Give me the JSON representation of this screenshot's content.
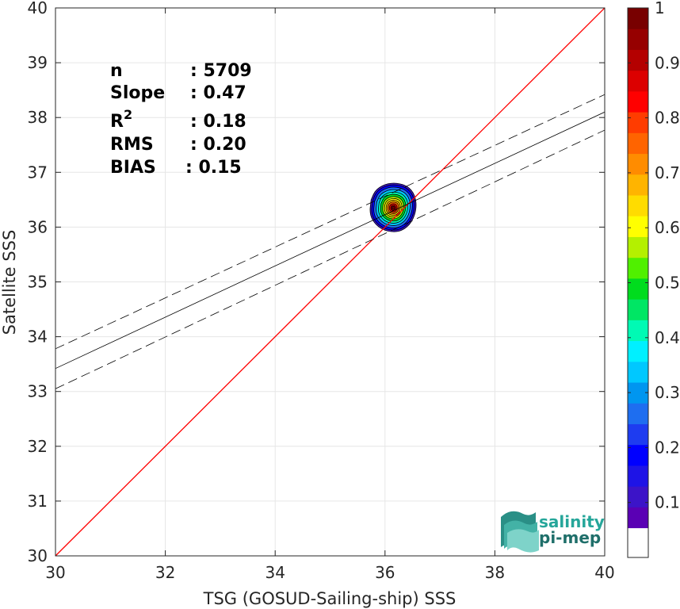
{
  "chart_data": {
    "type": "contour-scatter",
    "xlabel": "TSG (GOSUD-Sailing-ship) SSS",
    "ylabel": "Satellite SSS",
    "xlim": [
      30,
      40
    ],
    "ylim": [
      30,
      40
    ],
    "x_ticks": [
      "30",
      "32",
      "34",
      "36",
      "38",
      "40"
    ],
    "y_ticks": [
      "30",
      "31",
      "32",
      "33",
      "34",
      "35",
      "36",
      "37",
      "38",
      "39",
      "40"
    ],
    "grid": true,
    "stats": [
      {
        "label": "n",
        "value": ": 5709"
      },
      {
        "label": "Slope",
        "value": ": 0.47"
      },
      {
        "label": "R",
        "label_sup": "2",
        "value": ": 0.18"
      },
      {
        "label": "RMS",
        "value": ": 0.20"
      },
      {
        "label": "BIAS",
        "value": ": 0.15"
      }
    ],
    "identity_line": {
      "color": "#ff0000",
      "from": [
        30,
        30
      ],
      "to": [
        40,
        40
      ]
    },
    "regression_line": {
      "color": "#000000",
      "y_at_30": 33.42,
      "y_at_40": 38.1
    },
    "regression_bounds": [
      {
        "style": "dashed",
        "y_at_30": 33.78,
        "y_at_40": 38.42
      },
      {
        "style": "dashed",
        "y_at_30": 33.05,
        "y_at_40": 37.77
      }
    ],
    "density_center": [
      36.15,
      36.35
    ],
    "colorbar": {
      "ticks": [
        "0.1",
        "0.2",
        "0.3",
        "0.4",
        "0.5",
        "0.6",
        "0.7",
        "0.8",
        "0.9",
        "1"
      ],
      "range": [
        0,
        1
      ],
      "colors": [
        "#ffffff",
        "#5a00b4",
        "#3c14c8",
        "#1e14e6",
        "#0000ff",
        "#1e3cf0",
        "#1e6ef0",
        "#0096f0",
        "#00c8ff",
        "#00f0ff",
        "#00fab4",
        "#00e664",
        "#00dc1e",
        "#50f000",
        "#b4f000",
        "#ffff00",
        "#ffdc00",
        "#ffb400",
        "#ff8c00",
        "#ff6400",
        "#ff3c00",
        "#ff0000",
        "#dc0000",
        "#b40000",
        "#960000",
        "#780000"
      ]
    }
  },
  "logo": {
    "line1": "salinity",
    "line2": "pi-mep"
  }
}
